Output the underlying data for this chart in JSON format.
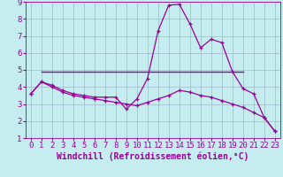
{
  "xlabel": "Windchill (Refroidissement éolien,°C)",
  "background_color": "#c5ecee",
  "line_color": "#990099",
  "xlim": [
    -0.5,
    23.5
  ],
  "ylim": [
    1,
    9
  ],
  "xticks": [
    0,
    1,
    2,
    3,
    4,
    5,
    6,
    7,
    8,
    9,
    10,
    11,
    12,
    13,
    14,
    15,
    16,
    17,
    18,
    19,
    20,
    21,
    22,
    23
  ],
  "yticks": [
    1,
    2,
    3,
    4,
    5,
    6,
    7,
    8,
    9
  ],
  "grid_color": "#a0b8cc",
  "series1_x": [
    0,
    1,
    2,
    3,
    4,
    5,
    6,
    7,
    8,
    9,
    10,
    11,
    12,
    13,
    14,
    15,
    16,
    17,
    18,
    19,
    20,
    21,
    22,
    23
  ],
  "series1_y": [
    3.6,
    4.3,
    4.1,
    3.8,
    3.6,
    3.5,
    3.4,
    3.4,
    3.4,
    2.7,
    3.3,
    4.5,
    7.3,
    8.8,
    8.85,
    7.7,
    6.3,
    6.8,
    6.6,
    4.9,
    3.9,
    3.6,
    2.2,
    1.4
  ],
  "series2_x": [
    1,
    20
  ],
  "series2_y": [
    4.9,
    4.9
  ],
  "series3_x": [
    0,
    1,
    2,
    3,
    4,
    5,
    6,
    7,
    8,
    9,
    10,
    11,
    12,
    13,
    14,
    15,
    16,
    17,
    18,
    19,
    20,
    21,
    22,
    23
  ],
  "series3_y": [
    3.6,
    4.3,
    4.0,
    3.7,
    3.5,
    3.4,
    3.3,
    3.2,
    3.1,
    3.0,
    2.9,
    3.1,
    3.3,
    3.5,
    3.8,
    3.7,
    3.5,
    3.4,
    3.2,
    3.0,
    2.8,
    2.5,
    2.2,
    1.4
  ],
  "xlabel_fontsize": 7,
  "tick_fontsize": 6.5
}
